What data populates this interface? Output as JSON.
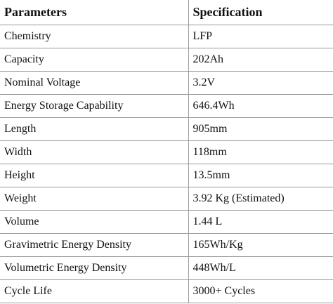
{
  "table": {
    "header": [
      "Parameters",
      "Specification"
    ],
    "rows": [
      [
        "Chemistry",
        "LFP"
      ],
      [
        "Capacity",
        "202Ah"
      ],
      [
        "Nominal Voltage",
        "3.2V"
      ],
      [
        "Energy Storage Capability",
        "646.4Wh"
      ],
      [
        "Length",
        "905mm"
      ],
      [
        "Width",
        "118mm"
      ],
      [
        "Height",
        "13.5mm"
      ],
      [
        "Weight",
        "3.92 Kg (Estimated)"
      ],
      [
        "Volume",
        "1.44 L"
      ],
      [
        "Gravimetric Energy Density",
        "165Wh/Kg"
      ],
      [
        "Volumetric Energy Density",
        "448Wh/L"
      ],
      [
        "Cycle Life",
        "3000+ Cycles"
      ]
    ]
  }
}
